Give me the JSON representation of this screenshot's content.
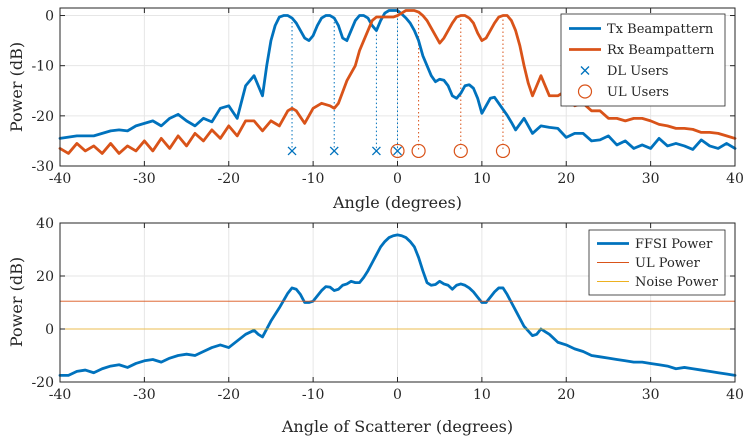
{
  "colors": {
    "tx": "#0072BD",
    "rx": "#D95319",
    "ul_power": "#D95319",
    "noise_power": "#EDB120",
    "grid": "#e6e6e6",
    "axis": "#262626"
  },
  "chart_data": [
    {
      "type": "line",
      "xlabel": "Angle (degrees)",
      "ylabel": "Power (dB)",
      "xlim": [
        -40,
        40
      ],
      "ylim": [
        -30,
        1.5
      ],
      "xticks": [
        -40,
        -30,
        -20,
        -10,
        0,
        10,
        20,
        30,
        40
      ],
      "yticks": [
        0,
        -10,
        -20,
        -30
      ],
      "grid": true,
      "legend_position": "top-right",
      "series": [
        {
          "name": "Tx Beampattern",
          "color": "#0072BD",
          "x": [
            -40,
            -38,
            -36,
            -34,
            -33,
            -32,
            -31,
            -30,
            -29,
            -28,
            -27,
            -26,
            -25,
            -24,
            -23,
            -22,
            -21,
            -20,
            -19,
            -18,
            -17,
            -16,
            -15.5,
            -15,
            -14.5,
            -14,
            -13.5,
            -13,
            -12.5,
            -12,
            -11.5,
            -11,
            -10.5,
            -10,
            -9.5,
            -9,
            -8.5,
            -8,
            -7.5,
            -7,
            -6.5,
            -6,
            -5.5,
            -5,
            -4.5,
            -4,
            -3.5,
            -3,
            -2.5,
            -2,
            -1.5,
            -1,
            -0.5,
            0,
            0.5,
            1,
            1.5,
            2,
            2.5,
            3,
            3.5,
            4,
            4.5,
            5,
            5.5,
            6,
            6.5,
            7,
            7.5,
            8,
            8.5,
            9,
            9.5,
            10,
            10.5,
            11,
            11.5,
            12,
            12.5,
            13,
            13.5,
            14,
            15,
            16,
            17,
            18,
            19,
            20,
            21,
            22,
            23,
            24,
            25,
            26,
            27,
            28,
            29,
            30,
            31,
            32,
            33,
            34,
            35,
            36,
            37,
            38,
            39,
            40
          ],
          "y": [
            -24.5,
            -24,
            -24,
            -23,
            -22.8,
            -23,
            -22,
            -21.5,
            -21,
            -22,
            -20.5,
            -19.7,
            -21,
            -22,
            -20.5,
            -21.2,
            -18.5,
            -18,
            -20.5,
            -14,
            -12,
            -16,
            -10,
            -5,
            -2,
            -0.3,
            0,
            0,
            -0.5,
            -1.5,
            -3,
            -4.5,
            -5,
            -4,
            -2,
            -0.5,
            0,
            0,
            -0.5,
            -2,
            -4.5,
            -5,
            -3,
            -1,
            0,
            0,
            -0.5,
            -2,
            -3,
            -1,
            0.5,
            1,
            1,
            1,
            0.3,
            -0.5,
            -1.5,
            -3,
            -5,
            -8,
            -10,
            -12,
            -13.2,
            -12.7,
            -12.9,
            -14,
            -16,
            -16.5,
            -15.5,
            -14,
            -13.8,
            -14.5,
            -16.5,
            -19.5,
            -18,
            -16.5,
            -16.3,
            -17.5,
            -18.7,
            -19.9,
            -21.3,
            -22.8,
            -20.5,
            -23.5,
            -22,
            -22.3,
            -22.5,
            -24.3,
            -23.5,
            -23.5,
            -25,
            -24.8,
            -24,
            -25.8,
            -25,
            -26.5,
            -25.8,
            -26.5,
            -24.5,
            -26,
            -25.5,
            -26,
            -26.7,
            -24.8,
            -26,
            -26.5,
            -25.5,
            -26.5
          ],
          "marker_name": "DL Users",
          "marker": "x",
          "markers_x": [
            -12.5,
            -7.5,
            -2.5,
            0
          ],
          "markers_y": [
            -27,
            -27,
            -27,
            -27
          ],
          "vlines_x": [
            -12.5,
            -7.5,
            -2.5,
            0
          ]
        },
        {
          "name": "Rx Beampattern",
          "color": "#D95319",
          "x": [
            -40,
            -39,
            -38,
            -37,
            -36,
            -35,
            -34,
            -33,
            -32,
            -31,
            -30,
            -29,
            -28,
            -27,
            -26,
            -25,
            -24,
            -23,
            -22,
            -21,
            -20,
            -19,
            -18,
            -17,
            -16,
            -15,
            -14,
            -13,
            -12.5,
            -12,
            -11,
            -10,
            -9,
            -8,
            -7.5,
            -7,
            -6,
            -5,
            -4.5,
            -4,
            -3.5,
            -3,
            -2.5,
            -2,
            -1.5,
            -1,
            -0.5,
            0,
            0.5,
            1,
            1.5,
            2,
            2.5,
            3,
            3.5,
            4,
            4.5,
            5,
            5.5,
            6,
            6.5,
            7,
            7.5,
            8,
            8.5,
            9,
            9.5,
            10,
            10.5,
            11,
            11.5,
            12,
            12.5,
            13,
            13.5,
            14,
            14.5,
            15,
            15.5,
            16,
            16.5,
            17,
            18,
            19,
            20,
            21,
            22,
            23,
            24,
            25,
            26,
            27,
            28,
            29,
            30,
            31,
            32,
            33,
            34,
            35,
            36,
            37,
            38,
            39,
            40
          ],
          "y": [
            -26.5,
            -27.5,
            -25.5,
            -27,
            -26,
            -27.5,
            -25.5,
            -27.5,
            -26,
            -27,
            -25,
            -27,
            -24.5,
            -26.5,
            -24,
            -26,
            -23.5,
            -25,
            -22.8,
            -24.5,
            -22,
            -24,
            -21,
            -21,
            -23,
            -21,
            -22,
            -19,
            -18.5,
            -19,
            -21.5,
            -18.5,
            -17.5,
            -18,
            -18.5,
            -17.5,
            -13,
            -10,
            -7,
            -5,
            -3,
            -1,
            -0.3,
            -0.3,
            -0.3,
            -0.3,
            -0.3,
            0,
            0.5,
            1,
            1,
            1,
            0.7,
            0,
            -1,
            -2.5,
            -4,
            -5.5,
            -4.5,
            -3,
            -1.5,
            -0.3,
            0,
            0,
            -0.5,
            -1.5,
            -3.5,
            -5,
            -4.5,
            -3,
            -1.5,
            -0.3,
            0,
            0,
            -1,
            -3,
            -6,
            -10,
            -13.5,
            -16,
            -14,
            -12,
            -16,
            -16,
            -15,
            -18,
            -17.5,
            -19,
            -19,
            -20.5,
            -20.5,
            -21,
            -20.5,
            -20.5,
            -21,
            -21.7,
            -22,
            -22.5,
            -22.5,
            -22.7,
            -23.3,
            -23.3,
            -23.5,
            -24,
            -24.5
          ],
          "marker_name": "UL Users",
          "marker": "o",
          "markers_x": [
            0,
            2.5,
            7.5,
            12.5
          ],
          "markers_y": [
            -27,
            -27,
            -27,
            -27
          ],
          "vlines_x": [
            2.5,
            7.5,
            12.5
          ]
        }
      ],
      "legend": [
        "Tx Beampattern",
        "Rx Beampattern",
        "DL Users",
        "UL Users"
      ]
    },
    {
      "type": "line",
      "xlabel": "Angle of Scatterer (degrees)",
      "ylabel": "Power (dB)",
      "xlim": [
        -40,
        40
      ],
      "ylim": [
        -20,
        40
      ],
      "xticks": [
        -40,
        -30,
        -20,
        -10,
        0,
        10,
        20,
        30,
        40
      ],
      "yticks": [
        40,
        20,
        0,
        -20
      ],
      "grid": true,
      "legend_position": "top-right",
      "series": [
        {
          "name": "FFSI Power",
          "color": "#0072BD",
          "x": [
            -40,
            -39,
            -38,
            -37,
            -36,
            -35,
            -34,
            -33,
            -32,
            -31,
            -30,
            -29,
            -28,
            -27,
            -26,
            -25,
            -24,
            -23,
            -22,
            -21,
            -20,
            -19,
            -18,
            -17,
            -16.5,
            -16,
            -15,
            -14,
            -13,
            -12.5,
            -12,
            -11.5,
            -11,
            -10.5,
            -10,
            -9.5,
            -9,
            -8.5,
            -8,
            -7.5,
            -7,
            -6.5,
            -6,
            -5.5,
            -5,
            -4.5,
            -4,
            -3.5,
            -3,
            -2.5,
            -2,
            -1.5,
            -1,
            -0.5,
            0,
            0.5,
            1,
            1.5,
            2,
            2.5,
            3,
            3.5,
            4,
            4.5,
            5,
            5.5,
            6,
            6.5,
            7,
            7.5,
            8,
            8.5,
            9,
            9.5,
            10,
            10.5,
            11,
            11.5,
            12,
            12.5,
            13,
            13.5,
            14,
            15,
            16,
            16.5,
            17,
            17.5,
            18,
            19,
            20,
            21,
            22,
            23,
            24,
            25,
            26,
            27,
            28,
            29,
            30,
            31,
            32,
            33,
            34,
            35,
            36,
            37,
            38,
            39,
            40
          ],
          "y": [
            -17.5,
            -17.5,
            -16,
            -15.5,
            -16.5,
            -15,
            -14,
            -13.5,
            -14.5,
            -13,
            -12,
            -11.5,
            -12.5,
            -11,
            -10,
            -9.5,
            -10,
            -8.5,
            -7,
            -6,
            -7,
            -4.5,
            -2,
            -0.5,
            -2,
            -3,
            3,
            8,
            13.5,
            15.5,
            15,
            13,
            10,
            10,
            10.5,
            12.5,
            14.5,
            16,
            15.8,
            14.5,
            15,
            16.5,
            17,
            18,
            17.5,
            17.5,
            19.5,
            22,
            25,
            28,
            31,
            33,
            34.5,
            35.2,
            35.5,
            35.2,
            34.5,
            33,
            31,
            27,
            22,
            17.5,
            16.5,
            16.8,
            18,
            17,
            16.5,
            15,
            16.5,
            17,
            16.5,
            15.5,
            14,
            12,
            10,
            10,
            12,
            14,
            15.5,
            15.5,
            13,
            10,
            7,
            1,
            -2.5,
            -2,
            0,
            -1,
            -2,
            -5,
            -6,
            -7.5,
            -8.5,
            -10,
            -10.5,
            -11,
            -11.5,
            -12,
            -12.5,
            -12.5,
            -13,
            -13.5,
            -14,
            -15,
            -14.5,
            -15,
            -15.5,
            -16,
            -16.5,
            -17,
            -17.5
          ],
          "style": "thick"
        },
        {
          "name": "UL Power",
          "color": "#D95319",
          "x": [
            -40,
            40
          ],
          "y": [
            10.5,
            10.5
          ],
          "style": "thin"
        },
        {
          "name": "Noise Power",
          "color": "#EDB120",
          "x": [
            -40,
            40
          ],
          "y": [
            0,
            0
          ],
          "style": "thin"
        }
      ],
      "legend": [
        "FFSI Power",
        "UL Power",
        "Noise Power"
      ]
    }
  ]
}
